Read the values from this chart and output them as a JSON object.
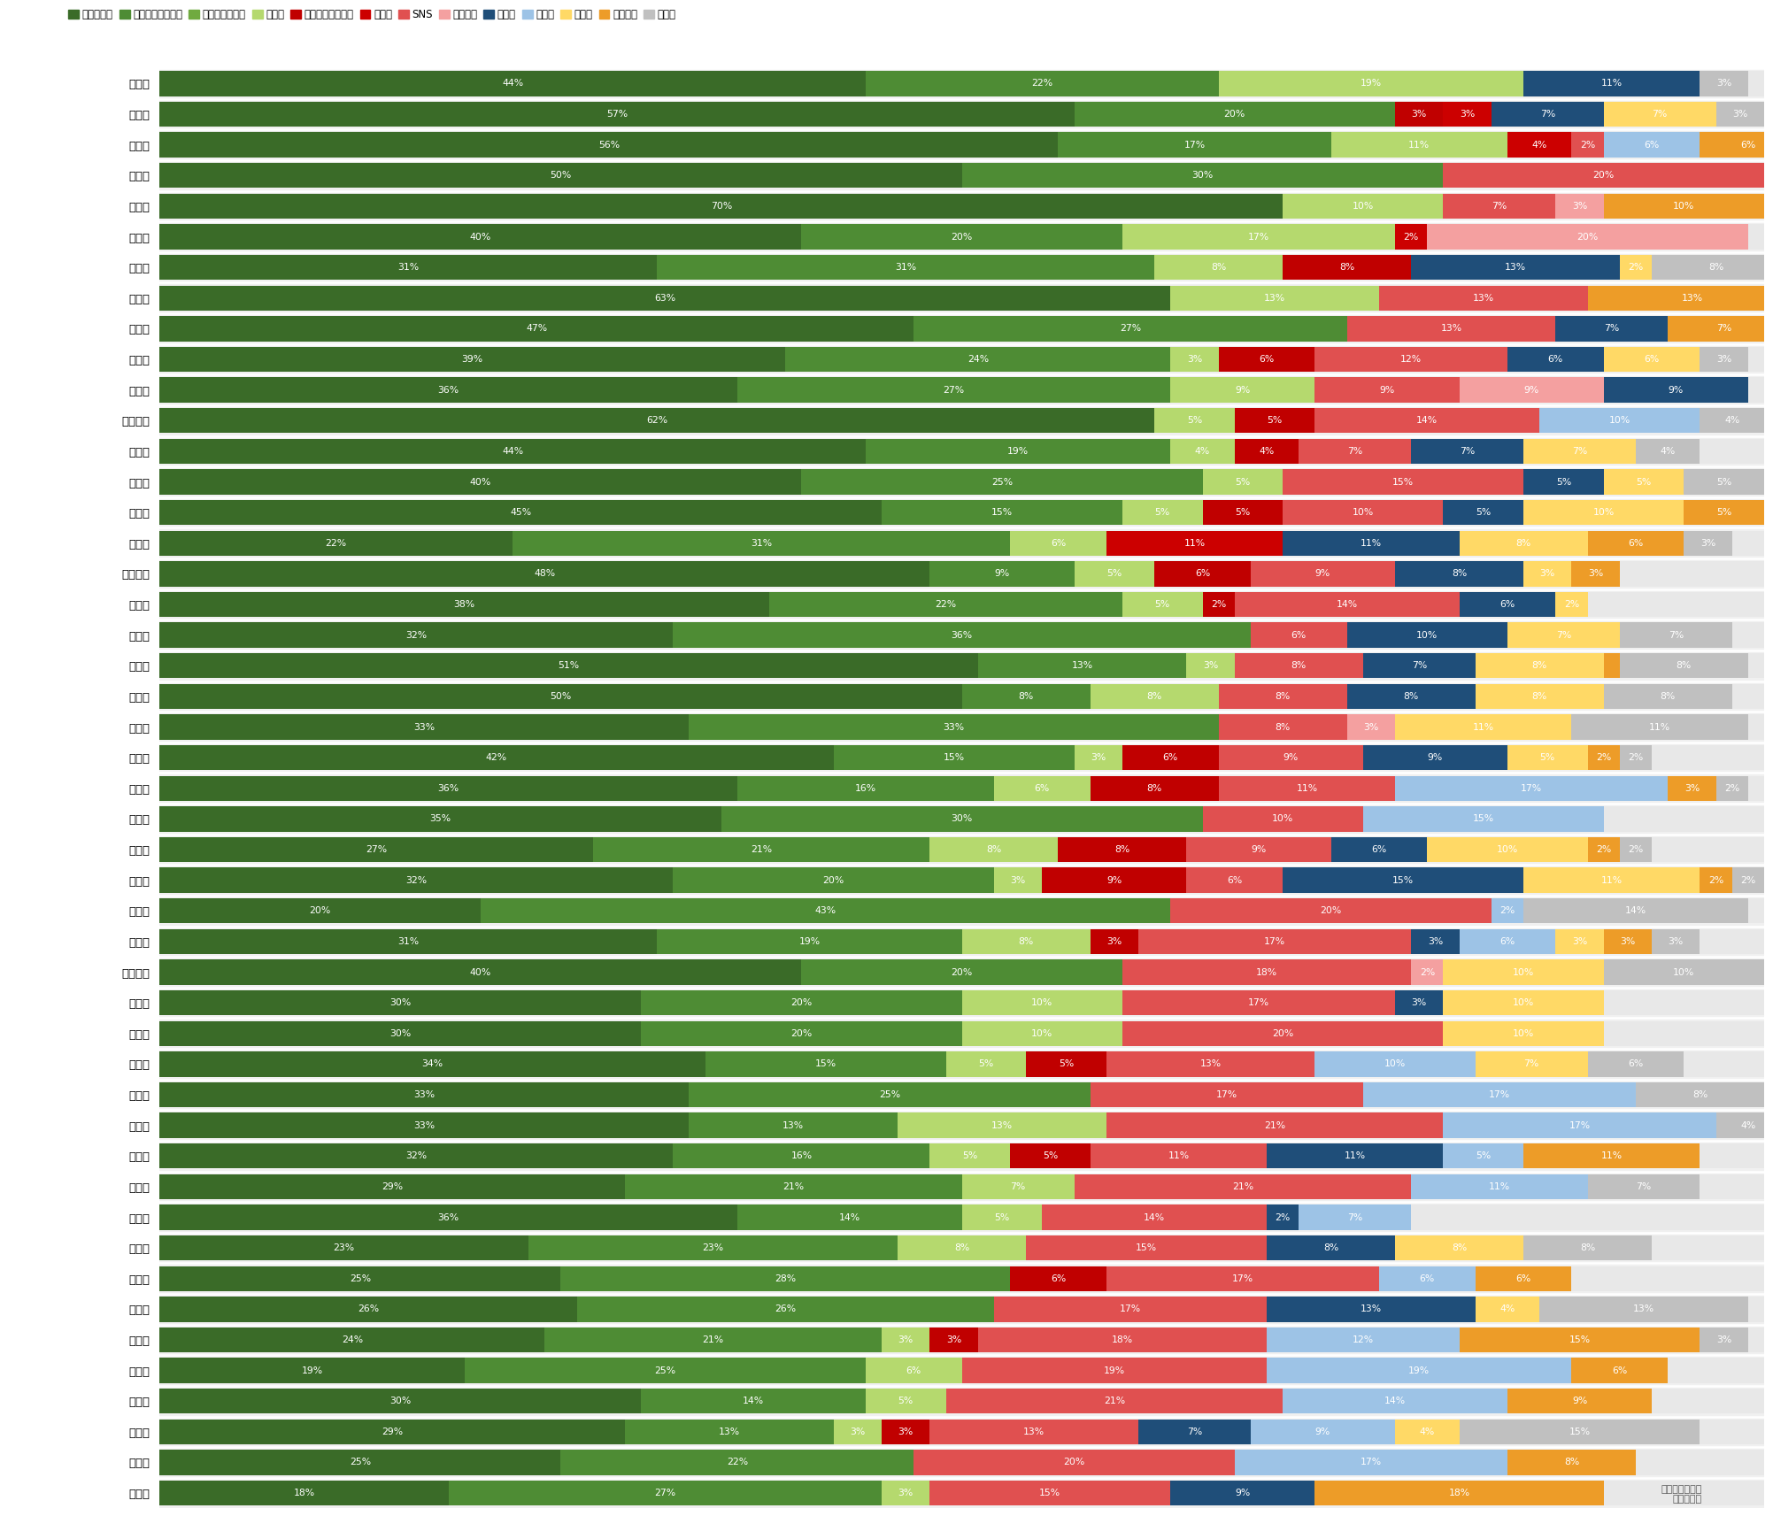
{
  "categories": [
    "岩手県",
    "宮城県",
    "長崎県",
    "宮崎県",
    "奈良県",
    "高知県",
    "山口県",
    "鳥取県",
    "石川県",
    "新潟県",
    "富山県",
    "鹿児島県",
    "茨城県",
    "長野県",
    "栃木県",
    "静岡県",
    "神奈川県",
    "北海道",
    "秋田県",
    "千葉県",
    "福島県",
    "島根県",
    "埼玉県",
    "愛知県",
    "山形県",
    "大阪府",
    "兵庫県",
    "福井県",
    "広島県",
    "和歌山県",
    "佐賀県",
    "香川県",
    "東京都",
    "大分県",
    "愛媛県",
    "沖縄県",
    "滋賀県",
    "青森県",
    "山梨県",
    "三重県",
    "岐阜県",
    "京都府",
    "群馬県",
    "岡山県",
    "福岡県",
    "徳島県",
    "熊本県"
  ],
  "legend_labels": [
    "職場・学校",
    "友人・知人の紹介",
    "部活・サークル",
    "バイト",
    "マッチングアプリ",
    "合コン",
    "SNS",
    "イベント",
    "ナンパ",
    "旅行先",
    "習い事",
    "お見合い",
    "その他"
  ],
  "colors": [
    "#3a6b28",
    "#4e8c34",
    "#70aa40",
    "#b5d96e",
    "#c00000",
    "#cc0000",
    "#e05050",
    "#f4a0a0",
    "#1f4e79",
    "#9dc3e6",
    "#ffd966",
    "#ed9c28",
    "#c0c0c0"
  ],
  "data": [
    [
      44,
      22,
      0,
      19,
      0,
      0,
      0,
      0,
      11,
      0,
      0,
      0,
      3
    ],
    [
      57,
      20,
      0,
      0,
      3,
      3,
      0,
      0,
      7,
      0,
      7,
      0,
      3
    ],
    [
      56,
      17,
      0,
      11,
      0,
      4,
      2,
      0,
      0,
      6,
      0,
      6,
      0
    ],
    [
      50,
      30,
      0,
      0,
      0,
      0,
      20,
      0,
      0,
      0,
      0,
      0,
      0
    ],
    [
      70,
      0,
      0,
      10,
      0,
      0,
      7,
      3,
      0,
      0,
      0,
      10,
      0
    ],
    [
      40,
      20,
      0,
      17,
      0,
      2,
      0,
      20,
      0,
      0,
      0,
      0,
      0
    ],
    [
      31,
      31,
      0,
      8,
      8,
      0,
      0,
      0,
      13,
      0,
      2,
      0,
      8
    ],
    [
      63,
      0,
      0,
      13,
      0,
      0,
      13,
      0,
      0,
      0,
      0,
      13,
      0
    ],
    [
      47,
      27,
      0,
      0,
      0,
      0,
      13,
      0,
      7,
      0,
      0,
      7,
      0
    ],
    [
      39,
      24,
      0,
      3,
      6,
      0,
      12,
      0,
      6,
      0,
      6,
      0,
      3
    ],
    [
      36,
      27,
      0,
      9,
      0,
      0,
      9,
      9,
      9,
      0,
      0,
      0,
      0
    ],
    [
      62,
      0,
      0,
      5,
      5,
      0,
      14,
      0,
      0,
      10,
      0,
      0,
      4
    ],
    [
      44,
      19,
      0,
      4,
      4,
      0,
      7,
      0,
      7,
      0,
      7,
      0,
      4
    ],
    [
      40,
      25,
      0,
      5,
      0,
      0,
      15,
      0,
      5,
      0,
      5,
      0,
      5
    ],
    [
      45,
      15,
      0,
      5,
      5,
      0,
      10,
      0,
      5,
      0,
      10,
      5,
      0
    ],
    [
      22,
      31,
      0,
      6,
      0,
      11,
      0,
      0,
      11,
      0,
      8,
      6,
      3
    ],
    [
      48,
      9,
      0,
      5,
      6,
      0,
      9,
      0,
      8,
      0,
      3,
      3,
      0
    ],
    [
      38,
      22,
      0,
      5,
      2,
      0,
      14,
      0,
      6,
      0,
      2,
      0,
      0
    ],
    [
      32,
      36,
      0,
      0,
      0,
      0,
      6,
      0,
      10,
      0,
      7,
      0,
      7
    ],
    [
      51,
      13,
      0,
      3,
      0,
      0,
      8,
      0,
      7,
      0,
      8,
      1,
      8
    ],
    [
      50,
      8,
      0,
      8,
      0,
      0,
      8,
      0,
      8,
      0,
      8,
      0,
      8
    ],
    [
      33,
      33,
      0,
      0,
      0,
      0,
      8,
      3,
      0,
      0,
      11,
      0,
      11
    ],
    [
      42,
      15,
      0,
      3,
      6,
      0,
      9,
      0,
      9,
      0,
      5,
      2,
      2
    ],
    [
      36,
      16,
      0,
      6,
      8,
      0,
      11,
      0,
      0,
      17,
      0,
      3,
      2
    ],
    [
      35,
      30,
      0,
      0,
      0,
      0,
      10,
      0,
      0,
      15,
      0,
      0,
      0
    ],
    [
      27,
      21,
      0,
      8,
      8,
      0,
      9,
      0,
      6,
      0,
      10,
      2,
      2
    ],
    [
      32,
      20,
      0,
      3,
      9,
      0,
      6,
      0,
      15,
      0,
      11,
      2,
      2
    ],
    [
      20,
      43,
      0,
      0,
      0,
      0,
      20,
      0,
      0,
      2,
      0,
      0,
      14
    ],
    [
      31,
      19,
      0,
      8,
      3,
      0,
      17,
      0,
      3,
      6,
      3,
      3,
      3
    ],
    [
      40,
      20,
      0,
      0,
      0,
      0,
      18,
      2,
      0,
      0,
      10,
      0,
      10
    ],
    [
      30,
      20,
      0,
      10,
      0,
      0,
      17,
      0,
      3,
      0,
      10,
      0,
      0
    ],
    [
      30,
      20,
      0,
      10,
      0,
      0,
      20,
      0,
      0,
      0,
      10,
      0,
      0
    ],
    [
      34,
      15,
      0,
      5,
      5,
      0,
      13,
      0,
      0,
      10,
      7,
      0,
      6
    ],
    [
      33,
      25,
      0,
      0,
      0,
      0,
      17,
      0,
      0,
      17,
      0,
      0,
      8
    ],
    [
      33,
      13,
      0,
      13,
      0,
      0,
      21,
      0,
      0,
      17,
      0,
      0,
      4
    ],
    [
      32,
      16,
      0,
      5,
      5,
      0,
      11,
      0,
      11,
      5,
      0,
      11,
      0
    ],
    [
      29,
      21,
      0,
      7,
      0,
      0,
      21,
      0,
      0,
      11,
      0,
      0,
      7
    ],
    [
      36,
      14,
      0,
      5,
      0,
      0,
      14,
      0,
      2,
      7,
      0,
      0,
      0
    ],
    [
      23,
      23,
      0,
      8,
      0,
      0,
      15,
      0,
      8,
      0,
      8,
      0,
      8
    ],
    [
      25,
      28,
      0,
      0,
      6,
      0,
      17,
      0,
      0,
      6,
      0,
      6,
      0
    ],
    [
      26,
      26,
      0,
      0,
      0,
      0,
      17,
      0,
      13,
      0,
      4,
      0,
      13
    ],
    [
      24,
      21,
      0,
      3,
      3,
      0,
      18,
      0,
      0,
      12,
      0,
      15,
      3
    ],
    [
      19,
      25,
      0,
      6,
      0,
      0,
      19,
      0,
      0,
      19,
      0,
      6,
      0
    ],
    [
      30,
      14,
      0,
      5,
      0,
      0,
      21,
      0,
      0,
      14,
      0,
      9,
      0
    ],
    [
      29,
      13,
      0,
      3,
      3,
      0,
      13,
      0,
      7,
      9,
      4,
      0,
      15
    ],
    [
      25,
      22,
      0,
      0,
      0,
      0,
      20,
      0,
      0,
      17,
      0,
      8,
      0
    ],
    [
      18,
      27,
      0,
      3,
      0,
      0,
      15,
      0,
      9,
      0,
      0,
      18,
      0
    ]
  ],
  "background_color": "#f0f0f0",
  "bar_bg_color": "#e8e8e8"
}
